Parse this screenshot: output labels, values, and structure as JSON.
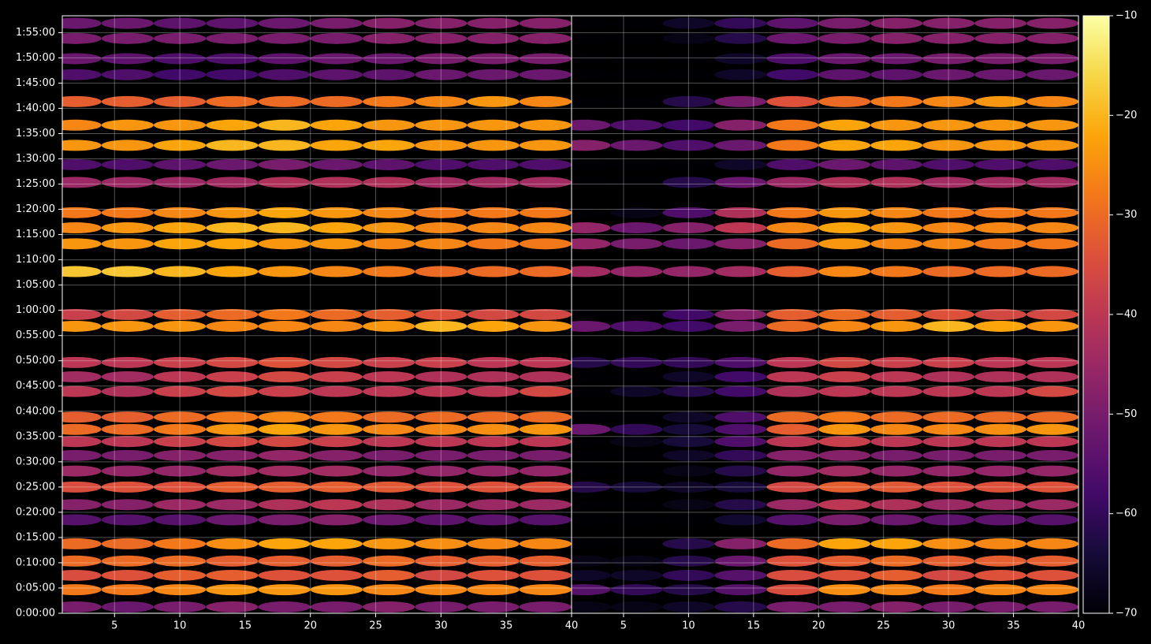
{
  "chart_data": [
    {
      "type": "heatmap",
      "cmap": "inferno",
      "grid": true,
      "x": [
        2,
        6,
        10,
        14,
        18,
        22,
        26,
        30,
        34,
        38
      ],
      "y": [
        75,
        280,
        450,
        620,
        825,
        1110,
        1290,
        1500,
        1690,
        1875,
        2040,
        2185,
        2330,
        2635,
        2810,
        2980,
        3410,
        3550,
        4060,
        4390,
        4580,
        4760,
        5120,
        5330,
        5560,
        5800,
        6080,
        6400,
        6590,
        6830,
        7010
      ],
      "values": [
        [
          -50,
          -52,
          -50,
          -48,
          -50,
          -50,
          -48,
          -50,
          -50,
          -50
        ],
        [
          -28,
          -28,
          -26,
          -24,
          -24,
          -24,
          -26,
          -26,
          -26,
          -26
        ],
        [
          -35,
          -34,
          -32,
          -32,
          -34,
          -34,
          -32,
          -36,
          -34,
          -34
        ],
        [
          -30,
          -30,
          -30,
          -32,
          -32,
          -32,
          -30,
          -32,
          -32,
          -32
        ],
        [
          -30,
          -30,
          -28,
          -25,
          -22,
          -22,
          -24,
          -25,
          -26,
          -26
        ],
        [
          -55,
          -55,
          -55,
          -52,
          -50,
          -48,
          -52,
          -54,
          -54,
          -55
        ],
        [
          -48,
          -48,
          -45,
          -45,
          -42,
          -40,
          -42,
          -45,
          -45,
          -45
        ],
        [
          -35,
          -34,
          -34,
          -32,
          -32,
          -32,
          -33,
          -34,
          -34,
          -34
        ],
        [
          -45,
          -46,
          -46,
          -44,
          -44,
          -44,
          -46,
          -46,
          -46,
          -46
        ],
        [
          -50,
          -50,
          -48,
          -48,
          -46,
          -48,
          -50,
          -50,
          -50,
          -50
        ],
        [
          -40,
          -40,
          -38,
          -36,
          -36,
          -38,
          -40,
          -40,
          -40,
          -40
        ],
        [
          -30,
          -30,
          -28,
          -24,
          -22,
          -24,
          -26,
          -26,
          -25,
          -24
        ],
        [
          -32,
          -32,
          -30,
          -28,
          -26,
          -28,
          -30,
          -30,
          -30,
          -30
        ],
        [
          -40,
          -42,
          -38,
          -36,
          -38,
          -40,
          -40,
          -40,
          -40,
          -36
        ],
        [
          -44,
          -44,
          -40,
          -38,
          -36,
          -38,
          -40,
          -42,
          -42,
          -42
        ],
        [
          -40,
          -40,
          -38,
          -36,
          -34,
          -36,
          -38,
          -38,
          -40,
          -40
        ],
        [
          -24,
          -24,
          -24,
          -26,
          -26,
          -26,
          -24,
          -20,
          -22,
          -24
        ],
        [
          -38,
          -36,
          -32,
          -30,
          -28,
          -30,
          -32,
          -34,
          -36,
          -36
        ],
        [
          -18,
          -18,
          -20,
          -22,
          -24,
          -26,
          -28,
          -30,
          -30,
          -30
        ],
        [
          -24,
          -24,
          -22,
          -22,
          -24,
          -24,
          -26,
          -26,
          -28,
          -28
        ],
        [
          -26,
          -24,
          -22,
          -20,
          -20,
          -22,
          -24,
          -26,
          -26,
          -26
        ],
        [
          -28,
          -28,
          -26,
          -24,
          -22,
          -24,
          -26,
          -28,
          -28,
          -28
        ],
        [
          -45,
          -45,
          -45,
          -44,
          -42,
          -42,
          -42,
          -44,
          -44,
          -44
        ],
        [
          -56,
          -56,
          -54,
          -52,
          -50,
          -52,
          -54,
          -56,
          -56,
          -56
        ],
        [
          -24,
          -24,
          -22,
          -20,
          -20,
          -22,
          -22,
          -24,
          -24,
          -24
        ],
        [
          -26,
          -24,
          -24,
          -22,
          -20,
          -22,
          -24,
          -24,
          -24,
          -24
        ],
        [
          -32,
          -32,
          -32,
          -30,
          -30,
          -30,
          -28,
          -26,
          -24,
          -26
        ],
        [
          -56,
          -56,
          -58,
          -58,
          -56,
          -54,
          -54,
          -52,
          -52,
          -52
        ],
        [
          -52,
          -54,
          -56,
          -56,
          -54,
          -52,
          -52,
          -50,
          -50,
          -50
        ],
        [
          -50,
          -50,
          -50,
          -50,
          -50,
          -50,
          -48,
          -48,
          -48,
          -48
        ],
        [
          -52,
          -52,
          -54,
          -54,
          -52,
          -50,
          -48,
          -48,
          -48,
          -48
        ]
      ],
      "xlim": [
        1,
        40
      ],
      "xticks": [
        5,
        10,
        15,
        20,
        25,
        30,
        35,
        40
      ],
      "ylim": [
        0,
        7100
      ],
      "yticks": [
        {
          "value": 0,
          "label": "0:00:00"
        },
        {
          "value": 300,
          "label": "0:05:00"
        },
        {
          "value": 600,
          "label": "0:10:00"
        },
        {
          "value": 900,
          "label": "0:15:00"
        },
        {
          "value": 1200,
          "label": "0:20:00"
        },
        {
          "value": 1500,
          "label": "0:25:00"
        },
        {
          "value": 1800,
          "label": "0:30:00"
        },
        {
          "value": 2100,
          "label": "0:35:00"
        },
        {
          "value": 2400,
          "label": "0:40:00"
        },
        {
          "value": 2700,
          "label": "0:45:00"
        },
        {
          "value": 3000,
          "label": "0:50:00"
        },
        {
          "value": 3300,
          "label": "0:55:00"
        },
        {
          "value": 3600,
          "label": "1:00:00"
        },
        {
          "value": 3900,
          "label": "1:05:00"
        },
        {
          "value": 4200,
          "label": "1:10:00"
        },
        {
          "value": 4500,
          "label": "1:15:00"
        },
        {
          "value": 4800,
          "label": "1:20:00"
        },
        {
          "value": 5100,
          "label": "1:25:00"
        },
        {
          "value": 5400,
          "label": "1:30:00"
        },
        {
          "value": 5700,
          "label": "1:35:00"
        },
        {
          "value": 6000,
          "label": "1:40:00"
        },
        {
          "value": 6300,
          "label": "1:45:00"
        },
        {
          "value": 6600,
          "label": "1:50:00"
        },
        {
          "value": 6900,
          "label": "1:55:00"
        }
      ],
      "clim": [
        -70,
        -10
      ],
      "cticks": [
        {
          "value": -10,
          "label": "−10"
        },
        {
          "value": -20,
          "label": "−20"
        },
        {
          "value": -30,
          "label": "−30"
        },
        {
          "value": -40,
          "label": "−40"
        },
        {
          "value": -50,
          "label": "−50"
        },
        {
          "value": -60,
          "label": "−60"
        },
        {
          "value": -70,
          "label": "−70"
        }
      ]
    },
    {
      "type": "heatmap",
      "cmap": "inferno",
      "grid": true,
      "x": [
        2,
        6,
        10,
        14,
        18,
        22,
        26,
        30,
        34,
        38
      ],
      "y": [
        75,
        280,
        450,
        620,
        825,
        1110,
        1290,
        1500,
        1690,
        1875,
        2040,
        2185,
        2330,
        2635,
        2810,
        2980,
        3410,
        3550,
        4060,
        4390,
        4580,
        4760,
        5120,
        5330,
        5560,
        5800,
        6080,
        6400,
        6590,
        6830,
        7010
      ],
      "values": [
        [
          -68,
          -68,
          -66,
          -62,
          -50,
          -50,
          -48,
          -50,
          -50,
          -50
        ],
        [
          -55,
          -60,
          -62,
          -55,
          -35,
          -25,
          -26,
          -28,
          -26,
          -26
        ],
        [
          -66,
          -66,
          -60,
          -55,
          -35,
          -34,
          -32,
          -36,
          -34,
          -34
        ],
        [
          -68,
          -68,
          -62,
          -52,
          -34,
          -32,
          -30,
          -32,
          -32,
          -32
        ],
        [
          -70,
          -70,
          -62,
          -48,
          -30,
          -22,
          -22,
          -25,
          -26,
          -26
        ],
        [
          -70,
          -70,
          -70,
          -65,
          -55,
          -50,
          -52,
          -54,
          -54,
          -55
        ],
        [
          -70,
          -70,
          -68,
          -62,
          -45,
          -40,
          -42,
          -45,
          -45,
          -45
        ],
        [
          -62,
          -64,
          -66,
          -64,
          -36,
          -32,
          -33,
          -34,
          -34,
          -34
        ],
        [
          -70,
          -70,
          -68,
          -62,
          -46,
          -44,
          -46,
          -46,
          -46,
          -46
        ],
        [
          -70,
          -70,
          -66,
          -60,
          -48,
          -48,
          -50,
          -50,
          -50,
          -50
        ],
        [
          -70,
          -68,
          -64,
          -56,
          -40,
          -38,
          -40,
          -40,
          -40,
          -40
        ],
        [
          -52,
          -60,
          -64,
          -56,
          -32,
          -24,
          -26,
          -26,
          -25,
          -24
        ],
        [
          -70,
          -70,
          -66,
          -56,
          -30,
          -28,
          -30,
          -30,
          -30,
          -30
        ],
        [
          -70,
          -66,
          -62,
          -58,
          -42,
          -40,
          -40,
          -40,
          -40,
          -36
        ],
        [
          -70,
          -70,
          -66,
          -58,
          -40,
          -38,
          -40,
          -42,
          -42,
          -42
        ],
        [
          -62,
          -60,
          -60,
          -56,
          -40,
          -36,
          -38,
          -38,
          -40,
          -40
        ],
        [
          -52,
          -56,
          -58,
          -50,
          -30,
          -26,
          -24,
          -20,
          -22,
          -24
        ],
        [
          -70,
          -70,
          -58,
          -48,
          -32,
          -30,
          -32,
          -34,
          -36,
          -36
        ],
        [
          -44,
          -46,
          -46,
          -44,
          -32,
          -26,
          -28,
          -30,
          -30,
          -30
        ],
        [
          -46,
          -50,
          -52,
          -48,
          -30,
          -24,
          -26,
          -26,
          -28,
          -28
        ],
        [
          -46,
          -52,
          -48,
          -40,
          -26,
          -22,
          -24,
          -26,
          -26,
          -26
        ],
        [
          -70,
          -68,
          -56,
          -42,
          -28,
          -24,
          -26,
          -28,
          -28,
          -28
        ],
        [
          -70,
          -70,
          -62,
          -52,
          -45,
          -42,
          -42,
          -44,
          -44,
          -44
        ],
        [
          -70,
          -70,
          -70,
          -66,
          -56,
          -52,
          -54,
          -56,
          -56,
          -56
        ],
        [
          -48,
          -52,
          -56,
          -52,
          -28,
          -22,
          -22,
          -24,
          -24,
          -24
        ],
        [
          -52,
          -56,
          -58,
          -48,
          -28,
          -22,
          -24,
          -24,
          -24,
          -24
        ],
        [
          -70,
          -70,
          -62,
          -50,
          -34,
          -30,
          -28,
          -26,
          -24,
          -26
        ],
        [
          -70,
          -70,
          -70,
          -66,
          -58,
          -54,
          -54,
          -52,
          -52,
          -52
        ],
        [
          -70,
          -70,
          -70,
          -66,
          -56,
          -52,
          -52,
          -50,
          -50,
          -50
        ],
        [
          -70,
          -70,
          -68,
          -62,
          -52,
          -50,
          -48,
          -48,
          -48,
          -48
        ],
        [
          -70,
          -70,
          -66,
          -60,
          -54,
          -50,
          -48,
          -48,
          -48,
          -48
        ]
      ],
      "xlim": [
        1,
        40
      ],
      "xticks": [
        5,
        10,
        15,
        20,
        25,
        30,
        35,
        40
      ],
      "ylim": [
        0,
        7100
      ],
      "clim": [
        -70,
        -10
      ]
    }
  ]
}
